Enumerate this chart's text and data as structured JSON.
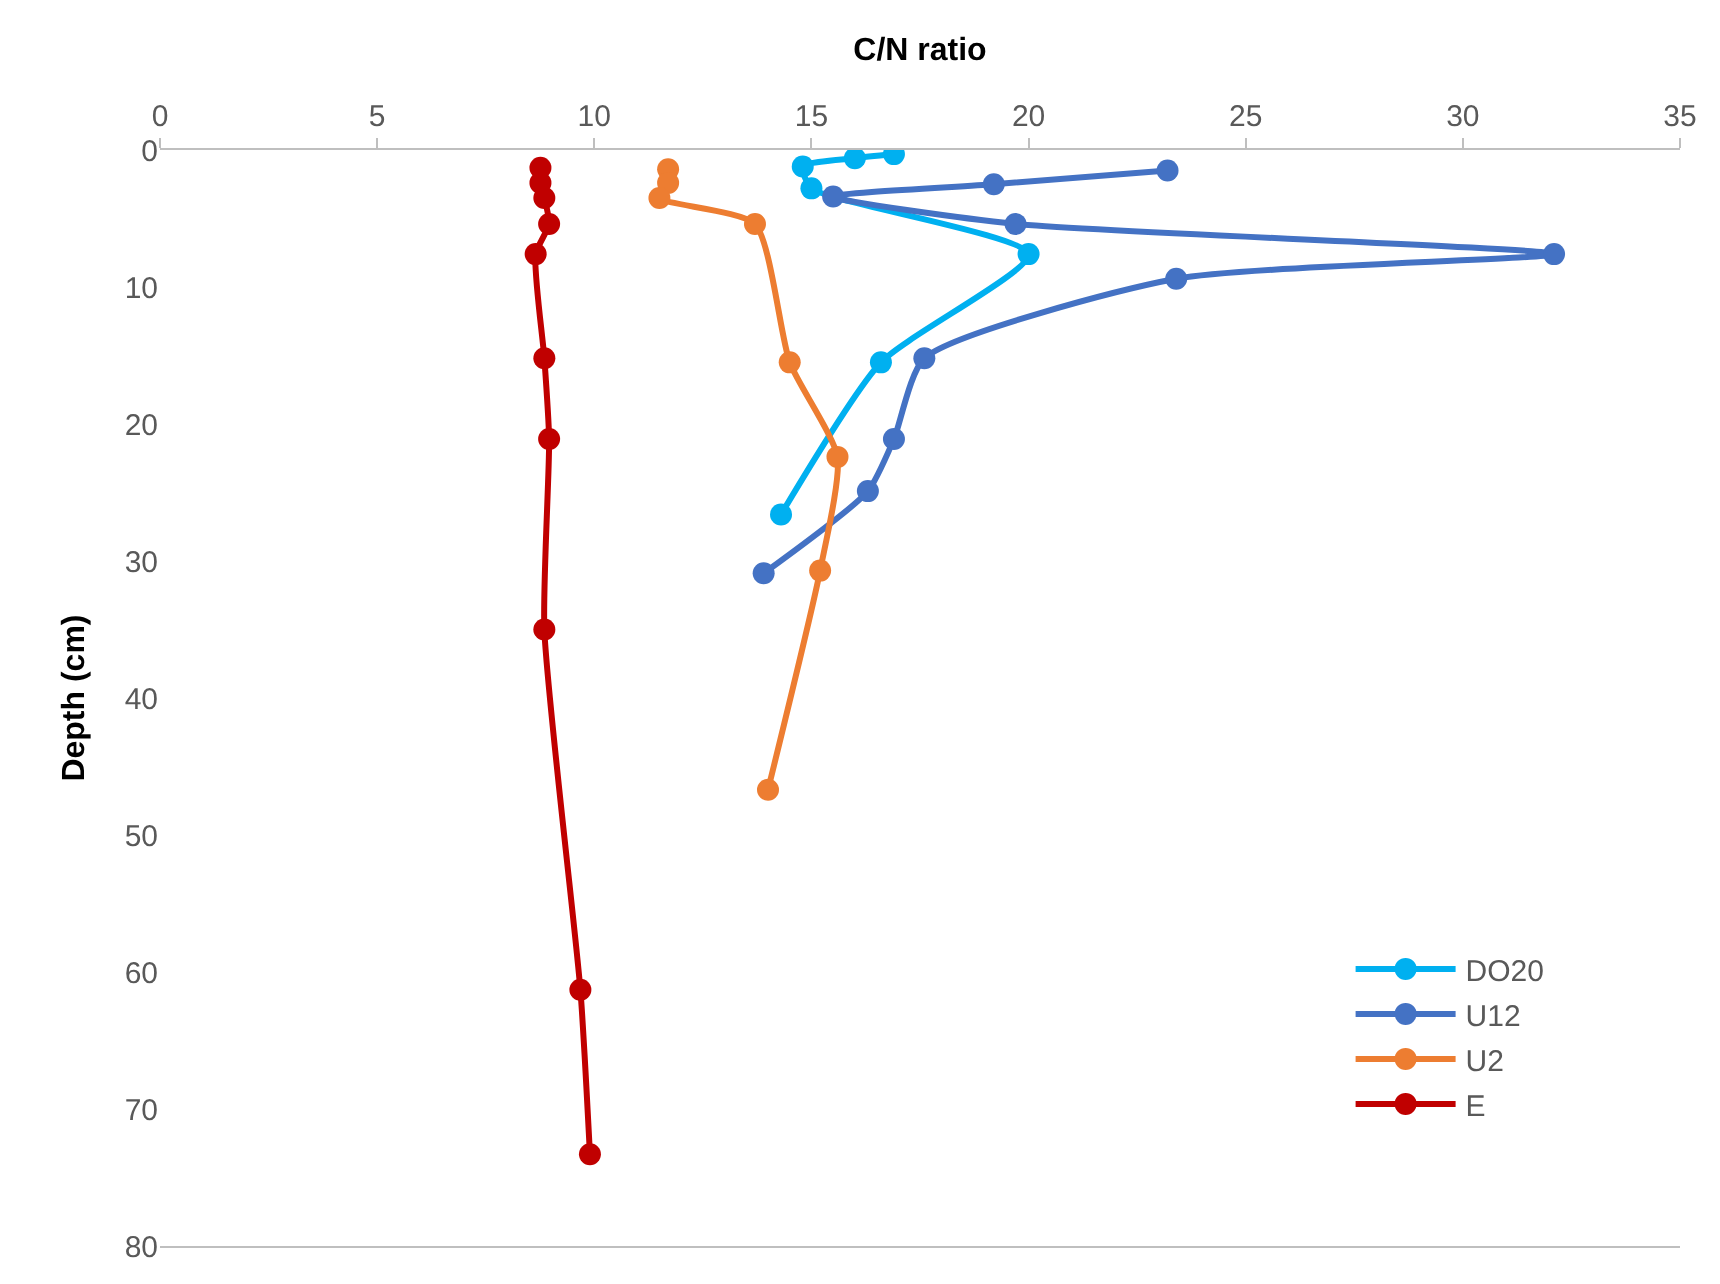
{
  "chart_data": {
    "type": "line",
    "xlabel": "C/N ratio",
    "ylabel": "Depth (cm)",
    "xlim": [
      0,
      35
    ],
    "xticks": [
      0,
      5,
      10,
      15,
      20,
      25,
      30,
      35
    ],
    "ylim": [
      80,
      0
    ],
    "yticks": [
      0,
      10,
      20,
      30,
      40,
      50,
      60,
      70,
      80
    ],
    "legend": "right",
    "marker": "circle",
    "line_style": "solid",
    "series": [
      {
        "name": "DO20",
        "color": "#00b0f0",
        "x": [
          16.9,
          16.0,
          14.8,
          15.0,
          20.0,
          16.6,
          14.3
        ],
        "values": [
          0.3,
          0.6,
          1.2,
          2.8,
          7.6,
          15.5,
          26.6
        ]
      },
      {
        "name": "U12",
        "color": "#4472c4",
        "x": [
          23.2,
          19.2,
          15.5,
          19.7,
          32.1,
          23.4,
          17.6,
          16.9,
          16.3,
          13.9
        ],
        "values": [
          1.5,
          2.5,
          3.4,
          5.4,
          7.6,
          9.4,
          15.2,
          21.1,
          24.9,
          30.9
        ]
      },
      {
        "name": "U2",
        "color": "#ed7d31",
        "x": [
          11.7,
          11.7,
          11.5,
          13.7,
          14.5,
          15.6,
          15.2,
          14.0
        ],
        "values": [
          1.4,
          2.4,
          3.5,
          5.4,
          15.5,
          22.4,
          30.7,
          46.7
        ]
      },
      {
        "name": "E",
        "color": "#c00000",
        "x": [
          8.76,
          8.76,
          8.85,
          8.96,
          8.65,
          8.85,
          8.96,
          8.85,
          9.68,
          9.9
        ],
        "values": [
          1.3,
          2.4,
          3.5,
          5.4,
          7.6,
          15.2,
          21.1,
          35.0,
          61.3,
          73.3
        ]
      }
    ]
  }
}
